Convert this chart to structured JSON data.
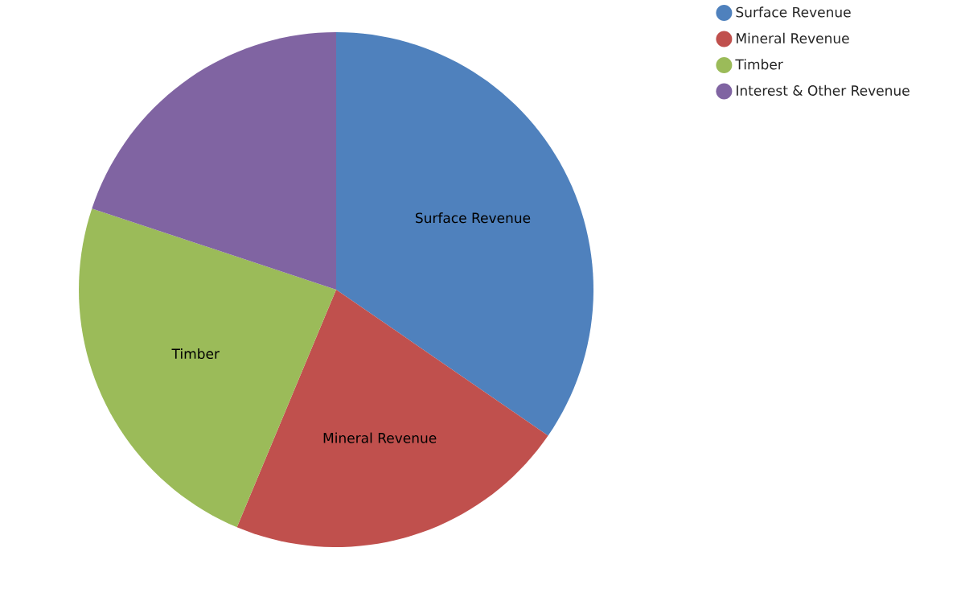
{
  "chart_data": {
    "type": "pie",
    "categories": [
      "Surface Revenue",
      "Mineral Revenue",
      "Timber",
      "Interest & Other Revenue"
    ],
    "values": [
      34.6,
      21.7,
      23.8,
      19.9
    ],
    "value_labels": [
      "Surface Revenue",
      "Mineral Revenue",
      "Timber",
      null
    ],
    "colors": [
      "#4f81bd",
      "#c0504d",
      "#9bbb59",
      "#8064a2"
    ],
    "legend": "top right"
  }
}
